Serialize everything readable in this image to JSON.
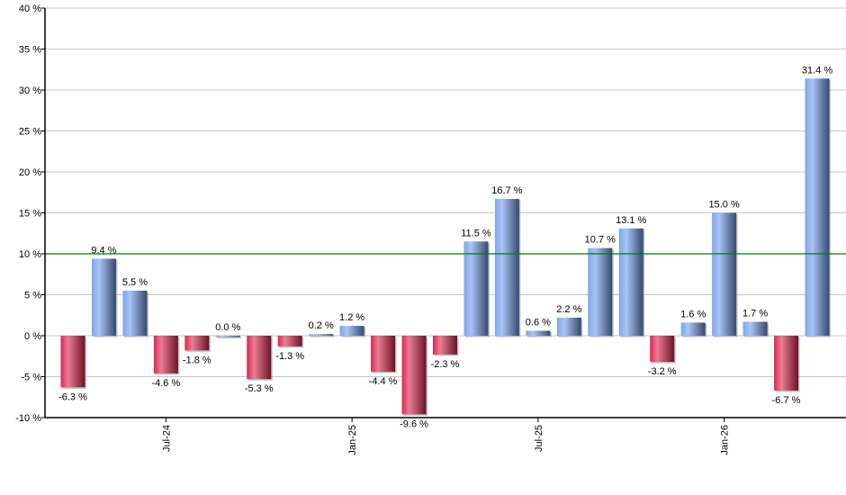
{
  "chart_data": {
    "type": "bar",
    "title": "",
    "xlabel": "",
    "ylabel": "",
    "ylim": [
      -10,
      40
    ],
    "yticks": [
      -10,
      -5,
      0,
      5,
      10,
      15,
      20,
      25,
      30,
      35,
      40
    ],
    "ytick_suffix": " %",
    "grid": true,
    "reference_line": {
      "value": 10,
      "color": "#008000"
    },
    "x_tick_labels": [
      {
        "index": 3,
        "label": "Jul-24"
      },
      {
        "index": 9,
        "label": "Jan-25"
      },
      {
        "index": 15,
        "label": "Jul-25"
      },
      {
        "index": 21,
        "label": "Jan-26"
      }
    ],
    "values": [
      -6.3,
      9.4,
      5.5,
      -4.6,
      -1.8,
      0.0,
      -5.3,
      -1.3,
      0.2,
      1.2,
      -4.4,
      -9.6,
      -2.3,
      11.5,
      16.7,
      0.6,
      2.2,
      10.7,
      13.1,
      -3.2,
      1.6,
      15.0,
      1.7,
      -6.7,
      31.4
    ],
    "labels": [
      "-6.3 %",
      "9.4 %",
      "5.5 %",
      "-4.6 %",
      "-1.8 %",
      "0.0 %",
      "-5.3 %",
      "-1.3 %",
      "0.2 %",
      "1.2 %",
      "-4.4 %",
      "-9.6 %",
      "-2.3 %",
      "11.5 %",
      "16.7 %",
      "0.6 %",
      "2.2 %",
      "10.7 %",
      "13.1 %",
      "-3.2 %",
      "1.6 %",
      "15.0 %",
      "1.7 %",
      "-6.7 %",
      "31.4 %"
    ],
    "colors": {
      "positive": "#6f93d6",
      "negative": "#c8304f"
    }
  }
}
